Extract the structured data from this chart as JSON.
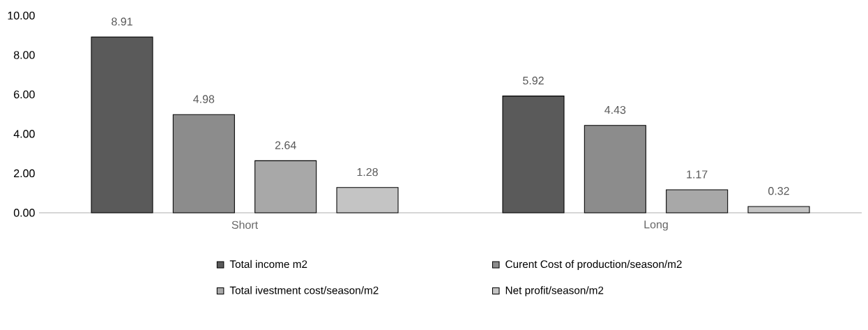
{
  "chart_data": {
    "type": "bar",
    "categories": [
      "Short",
      "Long"
    ],
    "series": [
      {
        "name": "Total income m2",
        "color": "#5a5a5a",
        "values": [
          8.91,
          5.92
        ]
      },
      {
        "name": "Curent Cost of production/season/m2",
        "color": "#8c8c8c",
        "values": [
          4.98,
          4.43
        ]
      },
      {
        "name": "Total ivestment cost/season/m2",
        "color": "#a8a8a8",
        "values": [
          2.64,
          1.17
        ]
      },
      {
        "name": "Net profit/season/m2",
        "color": "#c4c4c4",
        "values": [
          1.28,
          0.32
        ]
      }
    ],
    "ylim": [
      0,
      10
    ],
    "yticks": [
      {
        "value": 0,
        "label": "0.00"
      },
      {
        "value": 2,
        "label": "2.00"
      },
      {
        "value": 4,
        "label": "4.00"
      },
      {
        "value": 6,
        "label": "6.00"
      },
      {
        "value": 8,
        "label": "8.00"
      },
      {
        "value": 10,
        "label": "10.00"
      }
    ],
    "data_labels": true,
    "grid": false,
    "legend": "bottom"
  }
}
